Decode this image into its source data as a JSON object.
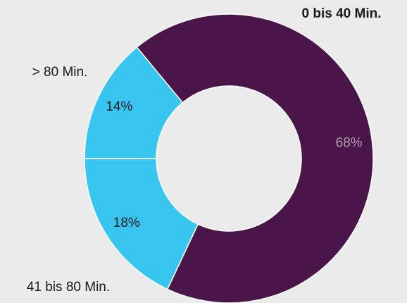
{
  "chart_data": {
    "type": "donut",
    "categories": [
      "0 bis 40  Min.",
      "41 bis 80  Min.",
      "> 80 Min."
    ],
    "values": [
      68,
      18,
      14
    ],
    "value_labels": [
      "68%",
      "18%",
      "14%"
    ],
    "colors": [
      "#4a1548",
      "#38c6f0",
      "#38c6f0"
    ]
  }
}
